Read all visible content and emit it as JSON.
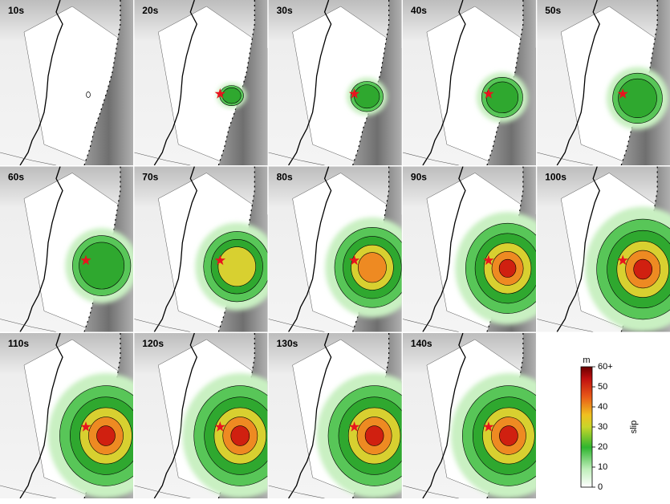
{
  "panels": [
    "10s",
    "20s",
    "30s",
    "40s",
    "50s",
    "60s",
    "70s",
    "80s",
    "90s",
    "100s",
    "110s",
    "120s",
    "130s",
    "140s"
  ],
  "colorbar": {
    "unit": "m",
    "label": "slip",
    "range": [
      0,
      60
    ],
    "ticks": [
      0,
      10,
      20,
      30,
      40,
      50,
      {
        "value": 60,
        "label": "60+"
      }
    ]
  }
}
